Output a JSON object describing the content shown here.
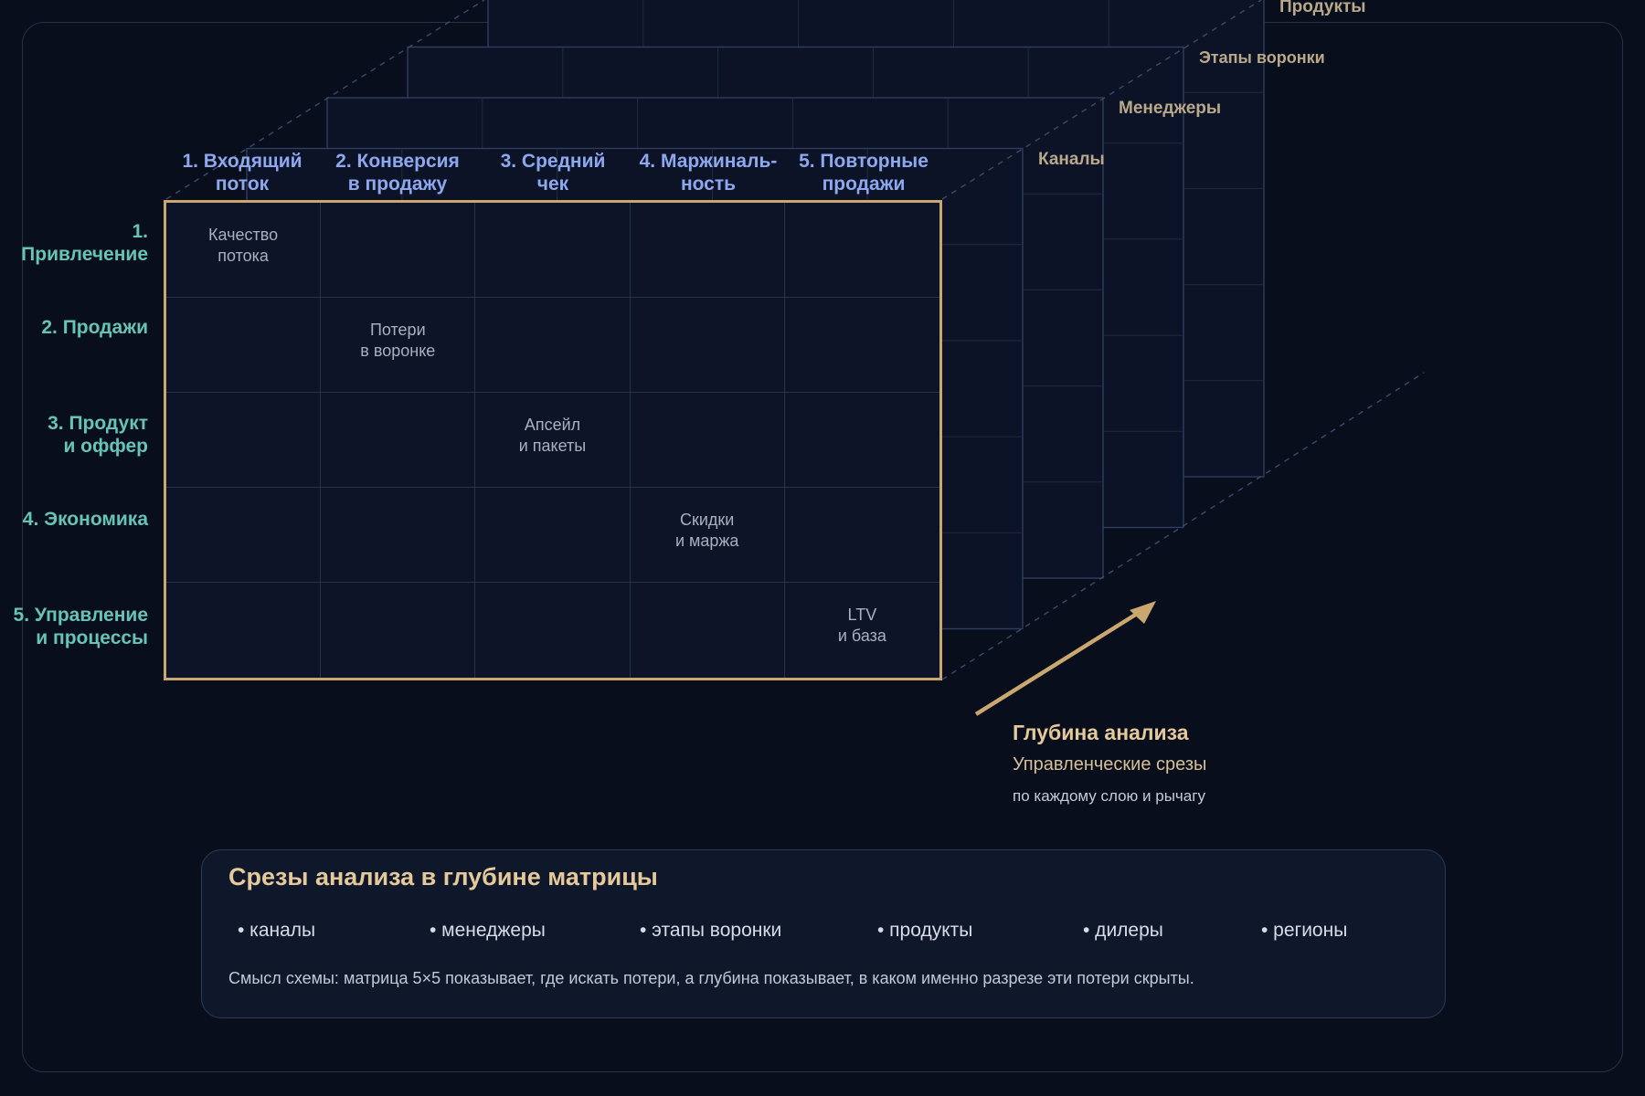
{
  "columns": [
    "1. Входящий\nпоток",
    "2. Конверсия\nв продажу",
    "3. Средний\nчек",
    "4. Маржиналь-\nность",
    "5. Повторные\nпродажи"
  ],
  "rows": [
    "1. Привлечение",
    "2. Продажи",
    "3. Продукт\nи оффер",
    "4. Экономика",
    "5. Управление\nи процессы"
  ],
  "diagonal_cells": [
    "Качество\nпотока",
    "Потери\nв воронке",
    "Апсейл\nи пакеты",
    "Скидки\nи маржа",
    "LTV\nи база"
  ],
  "layers": [
    "Каналы",
    "Менеджеры",
    "Этапы воронки",
    "Продукты"
  ],
  "depth": {
    "title": "Глубина анализа",
    "subtitle": "Управленческие срезы",
    "caption": "по каждому слою и рычагу"
  },
  "slices": {
    "title": "Срезы анализа в глубине матрицы",
    "items": [
      "• каналы",
      "• менеджеры",
      "• этапы воронки",
      "• продукты",
      "• дилеры",
      "• регионы"
    ],
    "note": "Смысл схемы: матрица 5×5 показывает, где искать потери, а глубина показывает, в каком именно разрезе эти потери скрыты."
  },
  "colors": {
    "background": "#090e1c",
    "column_labels": "#8ea8f0",
    "row_labels": "#66c4b6",
    "accent_gold": "#c9a76f",
    "layer_labels": "#b9a98a"
  }
}
